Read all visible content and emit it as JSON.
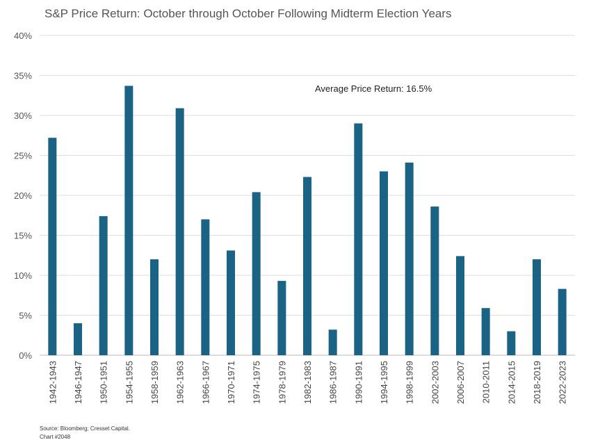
{
  "chart_data": {
    "type": "bar",
    "title": "S&P Price Return: October through October Following Midterm Election Years",
    "annotation": "Average Price Return: 16.5%",
    "xlabel": "",
    "ylabel": "",
    "ylim": [
      0,
      40
    ],
    "yticks": [
      "0%",
      "5%",
      "10%",
      "15%",
      "20%",
      "25%",
      "30%",
      "35%",
      "40%"
    ],
    "grid": true,
    "bar_color": "#1a6385",
    "categories": [
      "1942-1943",
      "1946-1947",
      "1950-1951",
      "1954-1955",
      "1958-1959",
      "1962-1963",
      "1966-1967",
      "1970-1971",
      "1974-1975",
      "1978-1979",
      "1982-1983",
      "1986-1987",
      "1990-1991",
      "1994-1995",
      "1998-1999",
      "2002-2003",
      "2006-2007",
      "2010-2011",
      "2014-2015",
      "2018-2019",
      "2022-2023"
    ],
    "values": [
      27.2,
      4.0,
      17.4,
      33.7,
      12.0,
      30.9,
      17.0,
      13.1,
      20.4,
      9.3,
      22.3,
      3.2,
      29.0,
      23.0,
      24.1,
      18.6,
      12.4,
      5.9,
      3.0,
      12.0,
      8.3
    ]
  },
  "footer": {
    "source": "Source: Bloomberg; Cresset Capital.",
    "chart_id": "Chart #2048"
  }
}
